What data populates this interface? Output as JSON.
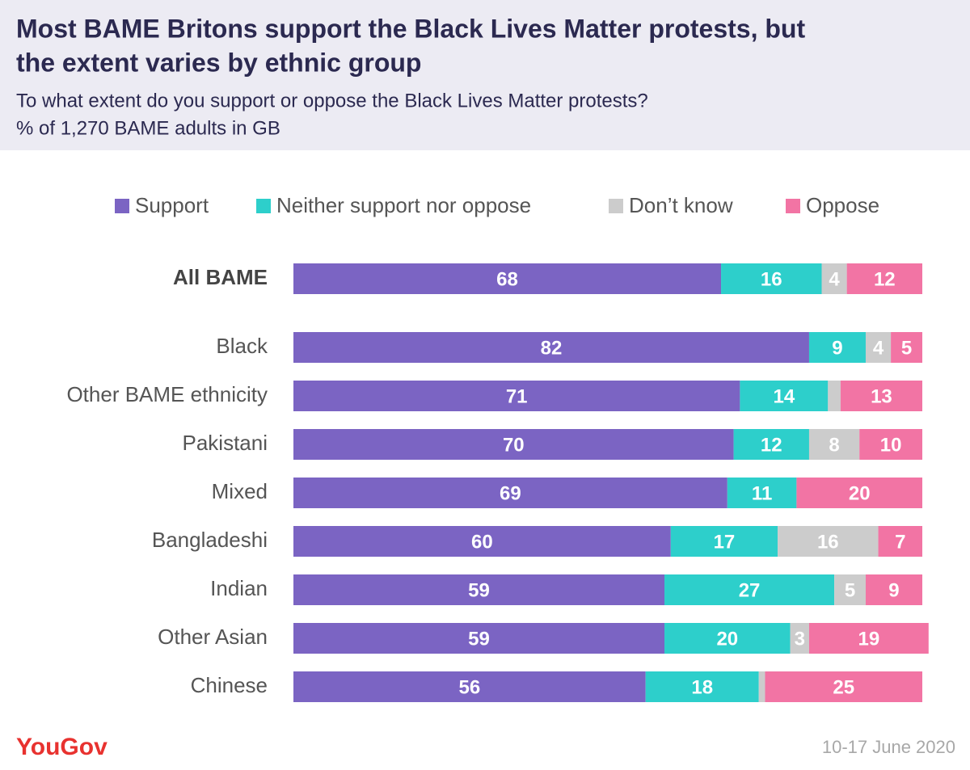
{
  "chart_data": {
    "type": "stacked-bar",
    "title_lines": [
      "Most BAME Britons support the Black Lives Matter protests, but",
      "the extent varies by ethnic group"
    ],
    "subtitle_lines": [
      "To what extent do you support or oppose the Black Lives Matter protests?",
      "% of 1,270 BAME adults in GB"
    ],
    "categories": [
      "All BAME",
      "Black",
      "Other BAME ethnicity",
      "Pakistani",
      "Mixed",
      "Bangladeshi",
      "Indian",
      "Other Asian",
      "Chinese"
    ],
    "series": [
      {
        "name": "Support",
        "color": "#7b64c3",
        "values": [
          68,
          82,
          71,
          70,
          69,
          60,
          59,
          59,
          56
        ]
      },
      {
        "name": "Neither support nor oppose",
        "color": "#2dcfcb",
        "values": [
          16,
          9,
          14,
          12,
          11,
          17,
          27,
          20,
          18
        ]
      },
      {
        "name": "Don’t know",
        "color": "#cccccc",
        "values": [
          4,
          4,
          2,
          8,
          0,
          16,
          5,
          3,
          1
        ]
      },
      {
        "name": "Oppose",
        "color": "#f274a4",
        "values": [
          12,
          5,
          13,
          10,
          20,
          7,
          9,
          19,
          25
        ]
      }
    ],
    "xlim": [
      0,
      100
    ],
    "source": "YouGov",
    "date": "10-17 June 2020"
  }
}
